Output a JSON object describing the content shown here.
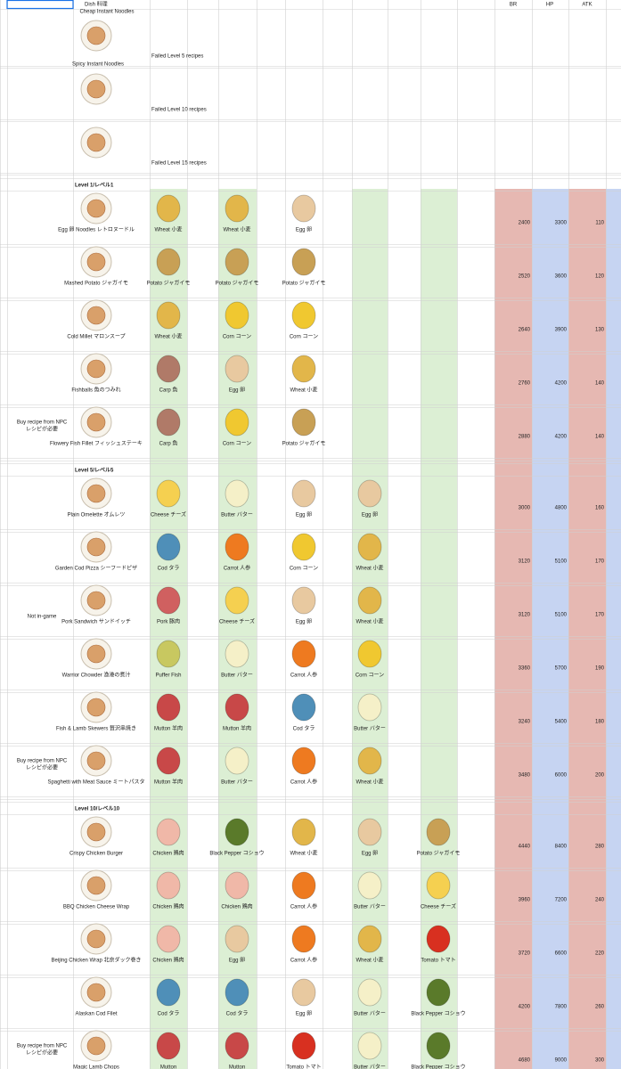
{
  "header": {
    "dish": "Dish 料理",
    "br": "BR",
    "hp": "HP",
    "atk": "ATK"
  },
  "top_label": "Cheap Instant Noodles",
  "failed": [
    {
      "name": "Spicy Instant Noodles",
      "note": "Failed Level 5 recipes"
    },
    {
      "note": "Failed Level 10 recipes"
    },
    {
      "note": "Failed Level 15 recipes"
    }
  ],
  "sections": [
    {
      "title": "Level 1/レベル1",
      "dishes": [
        {
          "name": "Egg 卵 Noodles  レトロヌードル",
          "ingredients": [
            {
              "name": "Wheat 小麦",
              "color": "#e2b64a"
            },
            {
              "name": "Wheat 小麦",
              "color": "#e2b64a"
            },
            {
              "name": "Egg 卵",
              "color": "#e8c9a0"
            }
          ],
          "br": 2400,
          "hp": 3300,
          "atk": 110
        },
        {
          "name": "Mashed Potato ジャガイモ",
          "ingredients": [
            {
              "name": "Potato ジャガイモ",
              "color": "#c8a055"
            },
            {
              "name": "Potato ジャガイモ",
              "color": "#c8a055"
            },
            {
              "name": "Potato ジャガイモ",
              "color": "#c8a055"
            }
          ],
          "br": 2520,
          "hp": 3600,
          "atk": 120
        },
        {
          "name": "Cold Millet マロンスープ",
          "ingredients": [
            {
              "name": "Wheat 小麦",
              "color": "#e2b64a"
            },
            {
              "name": "Corn コーン",
              "color": "#f0c830"
            },
            {
              "name": "Corn コーン",
              "color": "#f0c830"
            }
          ],
          "br": 2640,
          "hp": 3900,
          "atk": 130
        },
        {
          "name": "Fishballs 魚のつみれ",
          "ingredients": [
            {
              "name": "Carp 魚",
              "color": "#b07a68"
            },
            {
              "name": "Egg 卵",
              "color": "#e8c9a0"
            },
            {
              "name": "Wheat 小麦",
              "color": "#e2b64a"
            }
          ],
          "br": 2760,
          "hp": 4200,
          "atk": 140
        },
        {
          "name": "Flowery Fish Fillet フィッシュステーキ",
          "tag": [
            "Buy recipe from NPC",
            "レシピが必要"
          ],
          "ingredients": [
            {
              "name": "Carp 魚",
              "color": "#b07a68"
            },
            {
              "name": "Corn コーン",
              "color": "#f0c830"
            },
            {
              "name": "Potato ジャガイモ",
              "color": "#c8a055"
            }
          ],
          "br": 2880,
          "hp": 4200,
          "atk": 140
        }
      ]
    },
    {
      "title": "Level 5/レベル5",
      "dishes": [
        {
          "name": "Plain Omelette オムレツ",
          "ingredients": [
            {
              "name": "Cheese チーズ",
              "color": "#f5d050"
            },
            {
              "name": "Butter バター",
              "color": "#f5f0c8"
            },
            {
              "name": "Egg 卵",
              "color": "#e8c9a0"
            },
            {
              "name": "Egg 卵",
              "color": "#e8c9a0"
            }
          ],
          "br": 3000,
          "hp": 4800,
          "atk": 160
        },
        {
          "name": "Garden Cod Pizza シーフードピザ",
          "ingredients": [
            {
              "name": "Cod タラ",
              "color": "#4f8fb8"
            },
            {
              "name": "Carrot 人参",
              "color": "#ee7a20"
            },
            {
              "name": "Corn コーン",
              "color": "#f0c830"
            },
            {
              "name": "Wheat 小麦",
              "color": "#e2b64a"
            }
          ],
          "br": 3120,
          "hp": 5100,
          "atk": 170
        },
        {
          "name": "Pork Sandwich サンドイッチ",
          "tag": [
            "Not in-game"
          ],
          "ingredients": [
            {
              "name": "Pork 豚肉",
              "color": "#d06060"
            },
            {
              "name": "Cheese チーズ",
              "color": "#f5d050"
            },
            {
              "name": "Egg 卵",
              "color": "#e8c9a0"
            },
            {
              "name": "Wheat 小麦",
              "color": "#e2b64a"
            }
          ],
          "br": 3120,
          "hp": 5100,
          "atk": 170
        },
        {
          "name": "Warrior Chowder 漁港の煮汁",
          "ingredients": [
            {
              "name": "Puffer Fish",
              "color": "#c8c860"
            },
            {
              "name": "Butter バター",
              "color": "#f5f0c8"
            },
            {
              "name": "Carrot 人参",
              "color": "#ee7a20"
            },
            {
              "name": "Corn コーン",
              "color": "#f0c830"
            }
          ],
          "br": 3360,
          "hp": 5700,
          "atk": 190
        },
        {
          "name": "Fish & Lamb Skewers 贅沢串焼き",
          "ingredients": [
            {
              "name": "Mutton 羊肉",
              "color": "#c84848"
            },
            {
              "name": "Mutton 羊肉",
              "color": "#c84848"
            },
            {
              "name": "Cod タラ",
              "color": "#4f8fb8"
            },
            {
              "name": "Butter バター",
              "color": "#f5f0c8"
            }
          ],
          "br": 3240,
          "hp": 5400,
          "atk": 180
        },
        {
          "name": "Spaghetti with Meat Sauce ミートパスタ",
          "tag": [
            "Buy recipe from NPC",
            "レシピが必要"
          ],
          "ingredients": [
            {
              "name": "Mutton 羊肉",
              "color": "#c84848"
            },
            {
              "name": "Butter バター",
              "color": "#f5f0c8"
            },
            {
              "name": "Carrot 人参",
              "color": "#ee7a20"
            },
            {
              "name": "Wheat 小麦",
              "color": "#e2b64a"
            }
          ],
          "br": 3480,
          "hp": 6000,
          "atk": 200
        }
      ]
    },
    {
      "title": "Level 10/レベル10",
      "dishes": [
        {
          "name": "Crispy Chicken Burger",
          "ingredients": [
            {
              "name": "Chicken 鶏肉",
              "color": "#f0b8a8"
            },
            {
              "name": "Black Pepper コショウ",
              "color": "#5a7a2a"
            },
            {
              "name": "Wheat 小麦",
              "color": "#e2b64a"
            },
            {
              "name": "Egg 卵",
              "color": "#e8c9a0"
            },
            {
              "name": "Potato ジャガイモ",
              "color": "#c8a055"
            }
          ],
          "br": 4440,
          "hp": 8400,
          "atk": 280
        },
        {
          "name": "BBQ Chicken Cheese Wrap",
          "ingredients": [
            {
              "name": "Chicken 鶏肉",
              "color": "#f0b8a8"
            },
            {
              "name": "Chicken 鶏肉",
              "color": "#f0b8a8"
            },
            {
              "name": "Carrot 人参",
              "color": "#ee7a20"
            },
            {
              "name": "Butter バター",
              "color": "#f5f0c8"
            },
            {
              "name": "Cheese チーズ",
              "color": "#f5d050"
            }
          ],
          "br": 3960,
          "hp": 7200,
          "atk": 240
        },
        {
          "name": "Beijing Chicken Wrap 北京ダック巻き",
          "ingredients": [
            {
              "name": "Chicken 鶏肉",
              "color": "#f0b8a8"
            },
            {
              "name": "Egg 卵",
              "color": "#e8c9a0"
            },
            {
              "name": "Carrot 人参",
              "color": "#ee7a20"
            },
            {
              "name": "Wheat 小麦",
              "color": "#e2b64a"
            },
            {
              "name": "Tomato トマト",
              "color": "#d83020"
            }
          ],
          "br": 3720,
          "hp": 6600,
          "atk": 220
        },
        {
          "name": "Alaskan Cod Filet",
          "ingredients": [
            {
              "name": "Cod タラ",
              "color": "#4f8fb8"
            },
            {
              "name": "Cod タラ",
              "color": "#4f8fb8"
            },
            {
              "name": "Egg 卵",
              "color": "#e8c9a0"
            },
            {
              "name": "Butter バター",
              "color": "#f5f0c8"
            },
            {
              "name": "Black Pepper コショウ",
              "color": "#5a7a2a"
            }
          ],
          "br": 4200,
          "hp": 7800,
          "atk": 260
        },
        {
          "name": "Magic Lamb Chops",
          "tag": [
            "Buy recipe from NPC",
            "レシピが必要"
          ],
          "ingredients": [
            {
              "name": "Mutton",
              "color": "#c84848"
            },
            {
              "name": "Mutton",
              "color": "#c84848"
            },
            {
              "name": "Tomato トマト",
              "color": "#d83020"
            },
            {
              "name": "Butter バター",
              "color": "#f5f0c8"
            },
            {
              "name": "Black Pepper コショウ",
              "color": "#5a7a2a"
            }
          ],
          "br": 4680,
          "hp": 9000,
          "atk": 300
        }
      ]
    }
  ]
}
